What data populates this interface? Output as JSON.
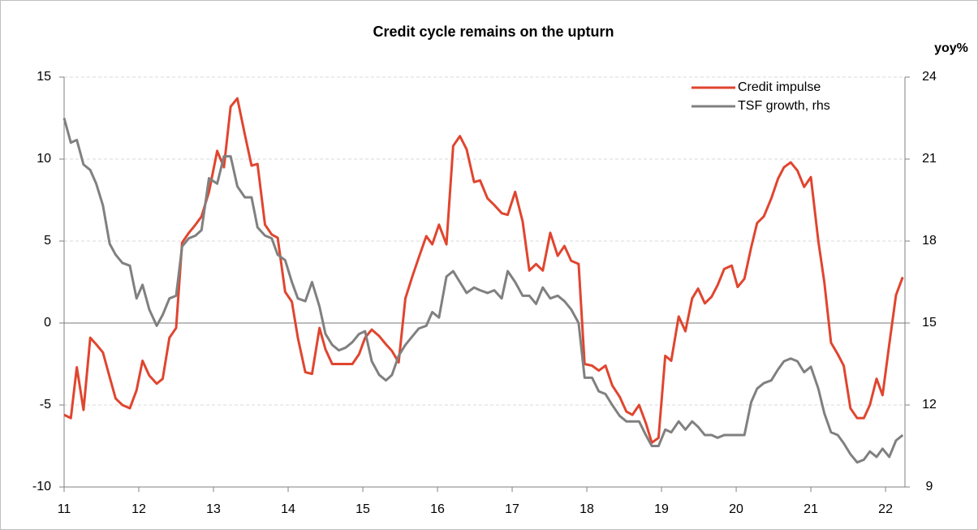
{
  "chart_data": {
    "type": "line",
    "title": "Credit cycle remains on the upturn",
    "y2_label": "yoy%",
    "x": [
      11.0,
      11.09,
      11.17,
      11.26,
      11.35,
      11.43,
      11.52,
      11.61,
      11.69,
      11.78,
      11.88,
      11.97,
      12.05,
      12.14,
      12.24,
      12.32,
      12.41,
      12.5,
      12.58,
      12.67,
      12.76,
      12.84,
      12.94,
      13.05,
      13.14,
      13.23,
      13.32,
      13.42,
      13.51,
      13.59,
      13.69,
      13.78,
      13.86,
      13.96,
      14.05,
      14.13,
      14.23,
      14.32,
      14.42,
      14.5,
      14.59,
      14.68,
      14.77,
      14.86,
      14.95,
      15.03,
      15.12,
      15.22,
      15.31,
      15.39,
      15.48,
      15.57,
      15.66,
      15.75,
      15.85,
      15.93,
      16.02,
      16.12,
      16.21,
      16.3,
      16.39,
      16.49,
      16.57,
      16.67,
      16.76,
      16.86,
      16.94,
      17.04,
      17.14,
      17.23,
      17.32,
      17.41,
      17.51,
      17.61,
      17.7,
      17.79,
      17.89,
      17.97,
      18.07,
      18.16,
      18.25,
      18.34,
      18.44,
      18.53,
      18.61,
      18.7,
      18.79,
      18.87,
      18.96,
      19.05,
      19.13,
      19.23,
      19.32,
      19.41,
      19.49,
      19.58,
      19.67,
      19.75,
      19.84,
      19.94,
      20.02,
      20.11,
      20.2,
      20.28,
      20.37,
      20.47,
      20.56,
      20.64,
      20.73,
      20.82,
      20.91,
      21.0,
      21.1,
      21.18,
      21.27,
      21.36,
      21.44,
      21.53,
      21.62,
      21.71,
      21.79,
      21.88,
      21.96,
      22.05,
      22.14,
      22.23
    ],
    "series": [
      {
        "name": "Credit impulse",
        "color": "#e0452f",
        "axis": "y",
        "values": [
          -5.6,
          -5.8,
          -2.7,
          -5.3,
          -0.9,
          -1.3,
          -1.8,
          -3.3,
          -4.6,
          -5.0,
          -5.2,
          -4.1,
          -2.3,
          -3.2,
          -3.7,
          -3.4,
          -0.9,
          -0.3,
          4.9,
          5.5,
          6.0,
          6.5,
          8.0,
          10.5,
          9.5,
          13.2,
          13.7,
          11.5,
          9.6,
          9.7,
          6.0,
          5.4,
          5.2,
          1.9,
          1.3,
          -0.9,
          -3.0,
          -3.1,
          -0.3,
          -1.6,
          -2.5,
          -2.5,
          -2.5,
          -2.5,
          -1.9,
          -0.9,
          -0.4,
          -0.8,
          -1.3,
          -1.7,
          -2.4,
          1.5,
          2.8,
          4.0,
          5.3,
          4.8,
          6.0,
          4.8,
          10.8,
          11.4,
          10.6,
          8.6,
          8.7,
          7.6,
          7.2,
          6.7,
          6.6,
          8.0,
          6.2,
          3.2,
          3.6,
          3.2,
          5.5,
          4.1,
          4.7,
          3.8,
          3.6,
          -2.5,
          -2.6,
          -2.9,
          -2.6,
          -3.8,
          -4.5,
          -5.4,
          -5.6,
          -5.0,
          -6.1,
          -7.3,
          -7.0,
          -2.0,
          -2.3,
          0.4,
          -0.5,
          1.5,
          2.1,
          1.2,
          1.6,
          2.3,
          3.3,
          3.5,
          2.2,
          2.7,
          4.6,
          6.1,
          6.5,
          7.6,
          8.8,
          9.5,
          9.8,
          9.3,
          8.3,
          8.9,
          5.0,
          2.5,
          -1.2,
          -1.9,
          -2.6,
          -5.2,
          -5.8,
          -5.8,
          -5.0,
          -3.4,
          -4.4,
          -1.3,
          1.7,
          2.8
        ]
      },
      {
        "name": "TSF growth, rhs",
        "color": "#808080",
        "axis": "y2",
        "values": [
          22.5,
          21.6,
          21.7,
          20.8,
          20.6,
          20.1,
          19.3,
          17.9,
          17.5,
          17.2,
          17.1,
          15.9,
          16.4,
          15.5,
          14.9,
          15.3,
          15.9,
          16.0,
          17.8,
          18.1,
          18.2,
          18.4,
          20.3,
          20.1,
          21.1,
          21.1,
          20.0,
          19.6,
          19.6,
          18.5,
          18.2,
          18.1,
          17.5,
          17.3,
          16.5,
          15.9,
          15.8,
          16.5,
          15.6,
          14.6,
          14.2,
          14.0,
          14.1,
          14.3,
          14.6,
          14.7,
          13.6,
          13.1,
          12.9,
          13.1,
          13.8,
          14.2,
          14.5,
          14.8,
          14.9,
          15.4,
          15.2,
          16.7,
          16.9,
          16.5,
          16.1,
          16.3,
          16.2,
          16.1,
          16.2,
          15.9,
          16.9,
          16.5,
          16.0,
          16.0,
          15.7,
          16.3,
          15.9,
          16.0,
          15.8,
          15.5,
          15.0,
          13.0,
          13.0,
          12.5,
          12.4,
          12.0,
          11.6,
          11.4,
          11.4,
          11.4,
          10.9,
          10.5,
          10.5,
          11.1,
          11.0,
          11.4,
          11.1,
          11.4,
          11.2,
          10.9,
          10.9,
          10.8,
          10.9,
          10.9,
          10.9,
          10.9,
          12.1,
          12.6,
          12.8,
          12.9,
          13.3,
          13.6,
          13.7,
          13.6,
          13.2,
          13.4,
          12.6,
          11.7,
          11.0,
          10.9,
          10.6,
          10.2,
          9.9,
          10.0,
          10.3,
          10.1,
          10.4,
          10.1,
          10.7,
          10.9
        ]
      }
    ],
    "xlim": [
      11,
      22.26
    ],
    "xticks": [
      11,
      12,
      13,
      14,
      15,
      16,
      17,
      18,
      19,
      20,
      21,
      22
    ],
    "ylim": [
      -10,
      15
    ],
    "yticks": [
      -10,
      -5,
      0,
      5,
      10,
      15
    ],
    "y2lim": [
      9,
      24
    ],
    "y2ticks": [
      9,
      12,
      15,
      18,
      21,
      24
    ],
    "grid": true,
    "legend": "upper right"
  }
}
